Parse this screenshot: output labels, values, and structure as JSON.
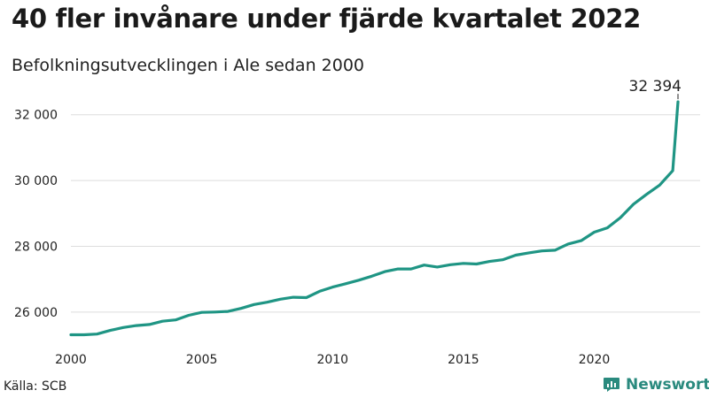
{
  "header": {
    "title": "40 fler invånare under fjärde kvartalet 2022",
    "subtitle": "Befolkningsutvecklingen i Ale sedan 2000"
  },
  "footer": {
    "source": "Källa: SCB",
    "brand": "Newsworthy",
    "brand_icon": "bar-chart-logo-icon"
  },
  "colors": {
    "line": "#1f9584",
    "grid": "#dddddd",
    "brand": "#2a8a7e"
  },
  "chart_data": {
    "type": "line",
    "title": "40 fler invånare under fjärde kvartalet 2022",
    "subtitle": "Befolkningsutvecklingen i Ale sedan 2000",
    "xlabel": "",
    "ylabel": "",
    "x_ticks": [
      "2000",
      "2005",
      "2010",
      "2015",
      "2020"
    ],
    "y_ticks": [
      "26 000",
      "28 000",
      "30 000",
      "32 000"
    ],
    "y_tick_values": [
      26000,
      28000,
      30000,
      32000
    ],
    "xlim": [
      2000,
      2023.2
    ],
    "ylim": [
      25000,
      32800
    ],
    "grid": "horizontal",
    "end_label": "32 394",
    "series": [
      {
        "points": [
          [
            2000.0,
            25310
          ],
          [
            2000.5,
            25310
          ],
          [
            2001.0,
            25330
          ],
          [
            2001.5,
            25440
          ],
          [
            2002.0,
            25530
          ],
          [
            2002.5,
            25590
          ],
          [
            2003.0,
            25620
          ],
          [
            2003.5,
            25720
          ],
          [
            2004.0,
            25760
          ],
          [
            2004.5,
            25900
          ],
          [
            2005.0,
            25990
          ],
          [
            2005.5,
            26000
          ],
          [
            2006.0,
            26020
          ],
          [
            2006.5,
            26110
          ],
          [
            2007.0,
            26230
          ],
          [
            2007.5,
            26300
          ],
          [
            2008.0,
            26390
          ],
          [
            2008.5,
            26450
          ],
          [
            2009.0,
            26440
          ],
          [
            2009.5,
            26630
          ],
          [
            2010.0,
            26760
          ],
          [
            2010.5,
            26860
          ],
          [
            2011.0,
            26970
          ],
          [
            2011.5,
            27090
          ],
          [
            2012.0,
            27230
          ],
          [
            2012.5,
            27310
          ],
          [
            2013.0,
            27310
          ],
          [
            2013.5,
            27430
          ],
          [
            2014.0,
            27370
          ],
          [
            2014.5,
            27440
          ],
          [
            2015.0,
            27480
          ],
          [
            2015.5,
            27460
          ],
          [
            2016.0,
            27540
          ],
          [
            2016.5,
            27590
          ],
          [
            2017.0,
            27730
          ],
          [
            2017.5,
            27800
          ],
          [
            2018.0,
            27860
          ],
          [
            2018.5,
            27880
          ],
          [
            2019.0,
            28070
          ],
          [
            2019.5,
            28170
          ],
          [
            2020.0,
            28430
          ],
          [
            2020.5,
            28560
          ],
          [
            2021.0,
            28870
          ],
          [
            2021.5,
            29280
          ],
          [
            2022.0,
            29580
          ],
          [
            2022.5,
            29860
          ],
          [
            2023.0,
            30300
          ],
          [
            2023.2,
            32394
          ]
        ]
      }
    ]
  }
}
